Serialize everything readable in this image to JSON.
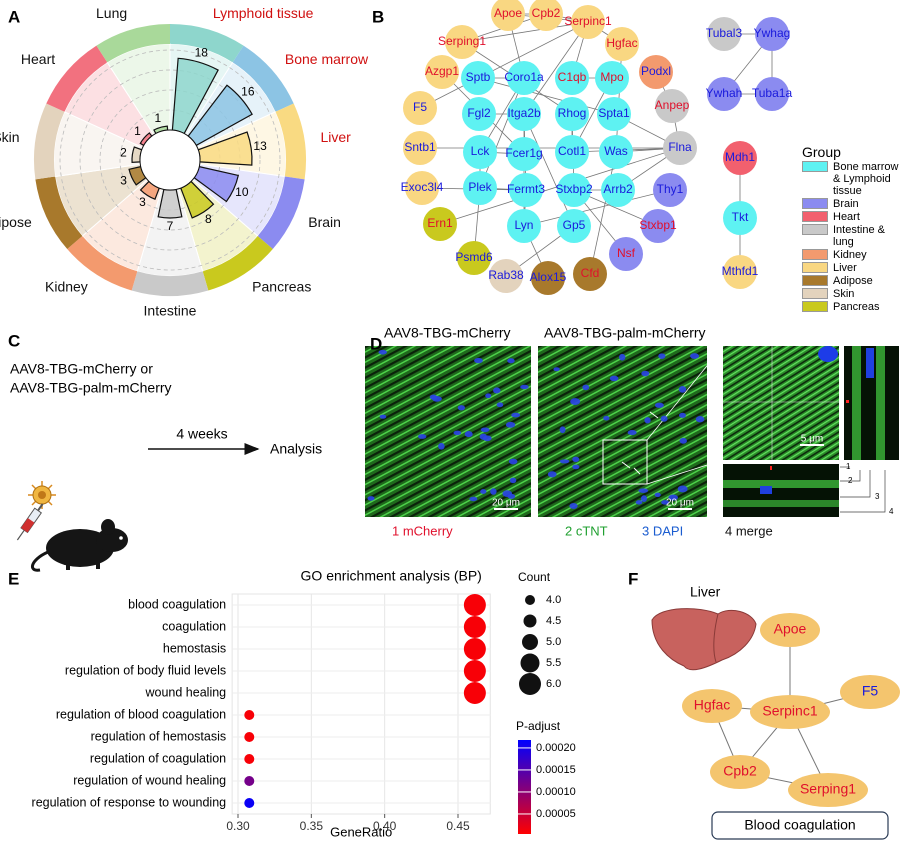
{
  "panel_labels": [
    "A",
    "B",
    "C",
    "D",
    "E",
    "F"
  ],
  "chart_data": [
    {
      "type": "polar-bar",
      "categories": [
        "Lymphoid tissue",
        "Bone marrow",
        "Liver",
        "Brain",
        "Pancreas",
        "Intestine",
        "Kidney",
        "Adipose",
        "Skin",
        "Heart",
        "Lung"
      ],
      "values": [
        18,
        16,
        13,
        10,
        8,
        7,
        3,
        3,
        2,
        1,
        1
      ],
      "colors": [
        "#8ed6cc",
        "#8cc4e4",
        "#f9da82",
        "#8b8bf0",
        "#c9c91e",
        "#c9c9c9",
        "#f39a6e",
        "#a8792c",
        "#e3d3bd",
        "#f2717f",
        "#a9d99a"
      ],
      "label_colors": [
        "#d01010",
        "#d01010",
        "#d01010",
        "#111111",
        "#111111",
        "#111111",
        "#111111",
        "#111111",
        "#111111",
        "#111111",
        "#111111"
      ],
      "ylim": [
        0,
        20
      ],
      "yticks": [
        5,
        10,
        15,
        20
      ],
      "grid": true
    },
    {
      "type": "dot",
      "title": "GO enrichment analysis (BP)",
      "categories": [
        "blood coagulation",
        "coagulation",
        "hemostasis",
        "regulation of body fluid levels",
        "wound healing",
        "regulation of blood coagulation",
        "regulation of hemostasis",
        "regulation of coagulation",
        "regulation of wound healing",
        "regulation of response to wounding"
      ],
      "values": [
        0.4615,
        0.4615,
        0.4615,
        0.4615,
        0.4615,
        0.3077,
        0.3077,
        0.3077,
        0.3077,
        0.3077
      ],
      "sizes": [
        6,
        6,
        6,
        6,
        6,
        4,
        4,
        4,
        4,
        4
      ],
      "color_values": [
        1e-05,
        1e-05,
        1e-05,
        1e-05,
        1e-05,
        1e-05,
        1e-05,
        1e-05,
        0.00012,
        0.00021
      ],
      "xlabel": "GeneRatio",
      "xlim": [
        0.296,
        0.472
      ],
      "xticks": [
        {
          "value": 0.3,
          "label": "0.30"
        },
        0.35,
        {
          "value": 0.4,
          "label": "0.40"
        },
        0.45
      ],
      "grid": true,
      "size_legend": {
        "title": "Count",
        "ticks": [
          {
            "value": 4,
            "label": "4.0"
          },
          4.5,
          {
            "value": 5,
            "label": "5.0"
          },
          5.5,
          {
            "value": 6,
            "label": "6.0"
          }
        ]
      },
      "color_legend": {
        "title": "P-adjust",
        "lim": [
          4.5e-06,
          0.000218
        ],
        "ticks": [
          {
            "value": 0.0002,
            "label": "0.00020"
          },
          0.00015,
          {
            "value": 0.0001,
            "label": "0.00010"
          },
          5e-05
        ],
        "colors": [
          "#ff0000",
          "#0000ff"
        ]
      }
    }
  ],
  "network": {
    "nodes": [
      {
        "label": "Apoe",
        "color": "#f9d782",
        "text_color": "#e0102c"
      },
      {
        "label": "Cpb2",
        "color": "#f9d782",
        "text_color": "#e0102c"
      },
      {
        "label": "Serpinc1",
        "color": "#f9d782",
        "text_color": "#e0102c"
      },
      {
        "label": "Serping1",
        "color": "#f9d782",
        "text_color": "#e0102c"
      },
      {
        "label": "Hgfac",
        "color": "#f9d782",
        "text_color": "#e0102c"
      },
      {
        "label": "Azgp1",
        "color": "#f9d782",
        "text_color": "#e0102c"
      },
      {
        "label": "Sptb",
        "color": "#5ef2f2",
        "text_color": "#1a1adc"
      },
      {
        "label": "Coro1a",
        "color": "#5ef2f2",
        "text_color": "#1a1adc"
      },
      {
        "label": "C1qb",
        "color": "#5ef2f2",
        "text_color": "#e0102c"
      },
      {
        "label": "Mpo",
        "color": "#5ef2f2",
        "text_color": "#e0102c"
      },
      {
        "label": "Podxl",
        "color": "#f39a6e",
        "text_color": "#1a1adc"
      },
      {
        "label": "F5",
        "color": "#f9d782",
        "text_color": "#1a1adc"
      },
      {
        "label": "Fgl2",
        "color": "#5ef2f2",
        "text_color": "#1a1adc"
      },
      {
        "label": "Itga2b",
        "color": "#5ef2f2",
        "text_color": "#1a1adc"
      },
      {
        "label": "Rhog",
        "color": "#5ef2f2",
        "text_color": "#1a1adc"
      },
      {
        "label": "Spta1",
        "color": "#5ef2f2",
        "text_color": "#1a1adc"
      },
      {
        "label": "Anpep",
        "color": "#c9c9c9",
        "text_color": "#e0102c"
      },
      {
        "label": "Sntb1",
        "color": "#f9d782",
        "text_color": "#1a1adc"
      },
      {
        "label": "Lck",
        "color": "#5ef2f2",
        "text_color": "#1a1adc"
      },
      {
        "label": "Fcer1g",
        "color": "#5ef2f2",
        "text_color": "#1a1adc"
      },
      {
        "label": "Cotl1",
        "color": "#5ef2f2",
        "text_color": "#1a1adc"
      },
      {
        "label": "Was",
        "color": "#5ef2f2",
        "text_color": "#1a1adc"
      },
      {
        "label": "Flna",
        "color": "#c9c9c9",
        "text_color": "#1a1adc"
      },
      {
        "label": "Exoc3l4",
        "color": "#f9d782",
        "text_color": "#1a1adc"
      },
      {
        "label": "Plek",
        "color": "#5ef2f2",
        "text_color": "#1a1adc"
      },
      {
        "label": "Fermt3",
        "color": "#5ef2f2",
        "text_color": "#1a1adc"
      },
      {
        "label": "Stxbp2",
        "color": "#5ef2f2",
        "text_color": "#1a1adc"
      },
      {
        "label": "Arrb2",
        "color": "#5ef2f2",
        "text_color": "#1a1adc"
      },
      {
        "label": "Thy1",
        "color": "#8b8bf0",
        "text_color": "#1a1adc"
      },
      {
        "label": "Ern1",
        "color": "#c9c91e",
        "text_color": "#e0102c"
      },
      {
        "label": "Lyn",
        "color": "#5ef2f2",
        "text_color": "#1a1adc"
      },
      {
        "label": "Gp5",
        "color": "#5ef2f2",
        "text_color": "#1a1adc"
      },
      {
        "label": "Stxbp1",
        "color": "#8b8bf0",
        "text_color": "#e0102c"
      },
      {
        "label": "Psmd6",
        "color": "#c9c91e",
        "text_color": "#1a1adc"
      },
      {
        "label": "Nsf",
        "color": "#8b8bf0",
        "text_color": "#e0102c"
      },
      {
        "label": "Rab38",
        "color": "#e3d3bd",
        "text_color": "#1a1adc"
      },
      {
        "label": "Alox15",
        "color": "#a8792c",
        "text_color": "#1a1adc"
      },
      {
        "label": "Cfd",
        "color": "#a8792c",
        "text_color": "#e0102c"
      },
      {
        "label": "Tubal3",
        "color": "#c9c9c9",
        "text_color": "#1a1adc"
      },
      {
        "label": "Ywhag",
        "color": "#8b8bf0",
        "text_color": "#1a1adc"
      },
      {
        "label": "Ywhah",
        "color": "#8b8bf0",
        "text_color": "#1a1adc"
      },
      {
        "label": "Tuba1a",
        "color": "#8b8bf0",
        "text_color": "#1a1adc"
      },
      {
        "label": "Mdh1",
        "color": "#f2606e",
        "text_color": "#1a1adc"
      },
      {
        "label": "Tkt",
        "color": "#5ef2f2",
        "text_color": "#1a1adc"
      },
      {
        "label": "Mthfd1",
        "color": "#f9d782",
        "text_color": "#1a1adc"
      }
    ],
    "legend": {
      "title": "Group",
      "items": [
        {
          "label": "Bone marrow & Lymphoid tissue",
          "color": "#5ef2f2"
        },
        {
          "label": "Brain",
          "color": "#8b8bf0"
        },
        {
          "label": "Heart",
          "color": "#f2606e"
        },
        {
          "label": "Intestine & lung",
          "color": "#c9c9c9"
        },
        {
          "label": "Kidney",
          "color": "#f39a6e"
        },
        {
          "label": "Liver",
          "color": "#f9d782"
        },
        {
          "label": "Adipose",
          "color": "#a8792c"
        },
        {
          "label": "Skin",
          "color": "#e3d3bd"
        },
        {
          "label": "Pancreas",
          "color": "#c9c91e"
        }
      ]
    }
  },
  "schematic": {
    "lines": [
      "AAV8-TBG-mCherry or",
      "AAV8-TBG-palm-mCherry"
    ],
    "arrow_label": "4 weeks",
    "result": "Analysis"
  },
  "microscopy": {
    "titles": [
      "AAV8-TBG-mCherry",
      "AAV8-TBG-palm-mCherry"
    ],
    "scale_bars": [
      "20 μm",
      "20 μm",
      "5 μm"
    ],
    "channels": [
      {
        "label": "1 mCherry",
        "color": "#e0102c"
      },
      {
        "label": "2 cTNT",
        "color": "#20a030"
      },
      {
        "label": "3 DAPI",
        "color": "#1a5cd0"
      },
      {
        "label": "4 merge",
        "color": "#111111"
      }
    ],
    "ortho_numbers": [
      "1",
      "2",
      "3",
      "4"
    ]
  },
  "liver_network": {
    "title": "Liver",
    "nodes": [
      "Apoe",
      "Hgfac",
      "Serpinc1",
      "F5",
      "Cpb2",
      "Serping1"
    ],
    "caption": "Blood coagulation"
  }
}
